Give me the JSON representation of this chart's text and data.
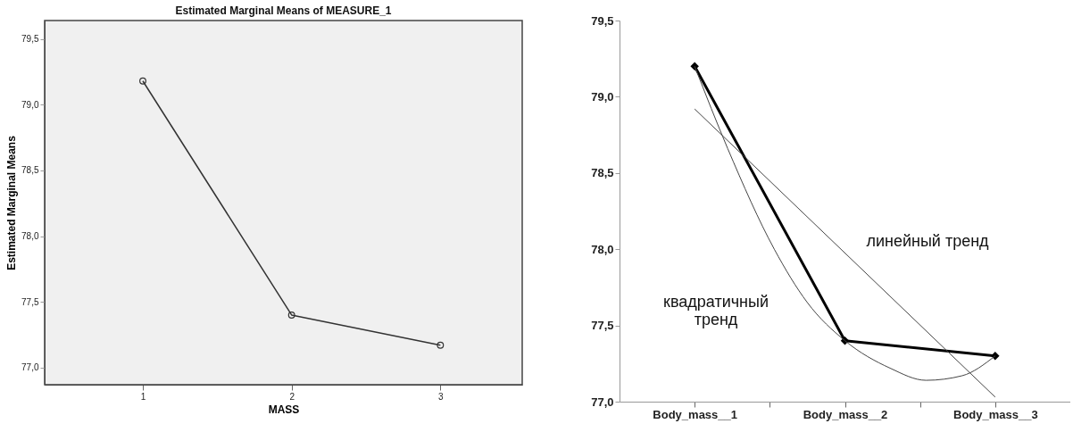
{
  "chart_data": [
    {
      "type": "line",
      "title": "Estimated Marginal Means of MEASURE_1",
      "xlabel": "MASS",
      "ylabel": "Estimated Marginal Means",
      "x": [
        1,
        2,
        3
      ],
      "xlim": [
        0.34,
        3.55
      ],
      "xticks": [
        {
          "value": 1,
          "label": "1"
        },
        {
          "value": 2,
          "label": "2"
        },
        {
          "value": 3,
          "label": "3"
        }
      ],
      "ylim": [
        76.87,
        79.64
      ],
      "yticks": [
        {
          "value": 77.0,
          "label": "77,0"
        },
        {
          "value": 77.5,
          "label": "77,5"
        },
        {
          "value": 78.0,
          "label": "78,0"
        },
        {
          "value": 78.5,
          "label": "78,5"
        },
        {
          "value": 79.0,
          "label": "79,0"
        },
        {
          "value": 79.5,
          "label": "79,5"
        }
      ],
      "grid": false,
      "marker": "circle",
      "series": [
        {
          "color": "#333333",
          "values": [
            79.18,
            77.4,
            77.17
          ]
        }
      ]
    },
    {
      "type": "line",
      "xlim": [
        0.5,
        3.5
      ],
      "xticks": [
        {
          "value": 1,
          "label": "Body_mass__1"
        },
        {
          "value": 1.5,
          "label": null
        },
        {
          "value": 2,
          "label": "Body_mass__2"
        },
        {
          "value": 2.5,
          "label": null
        },
        {
          "value": 3,
          "label": "Body_mass__3"
        }
      ],
      "ylim": [
        77.0,
        79.5
      ],
      "yticks": [
        {
          "value": 77.0,
          "label": "77,0"
        },
        {
          "value": 77.5,
          "label": "77,5"
        },
        {
          "value": 78.0,
          "label": "78,0"
        },
        {
          "value": 78.5,
          "label": "78,5"
        },
        {
          "value": 79.0,
          "label": "79,0"
        },
        {
          "value": 79.5,
          "label": "79,5"
        }
      ],
      "grid": false,
      "series": [
        {
          "color": "#000000",
          "marker": "diamond",
          "x": [
            1,
            2,
            3
          ],
          "values": [
            79.2,
            77.4,
            77.3
          ]
        },
        {
          "color": "#444444",
          "marker": "none",
          "x": [
            1,
            3
          ],
          "values": [
            78.92,
            77.03
          ]
        },
        {
          "color": "#444444",
          "marker": "none",
          "x": [
            1,
            1.22,
            1.53,
            1.75,
            2,
            2.3,
            2.54,
            2.78,
            3
          ],
          "values": [
            79.2,
            78.66,
            78.0,
            77.65,
            77.4,
            77.22,
            77.14,
            77.17,
            77.3
          ]
        }
      ],
      "annotations": [
        "линейный тренд",
        "квадратичный\nтренд"
      ]
    }
  ]
}
